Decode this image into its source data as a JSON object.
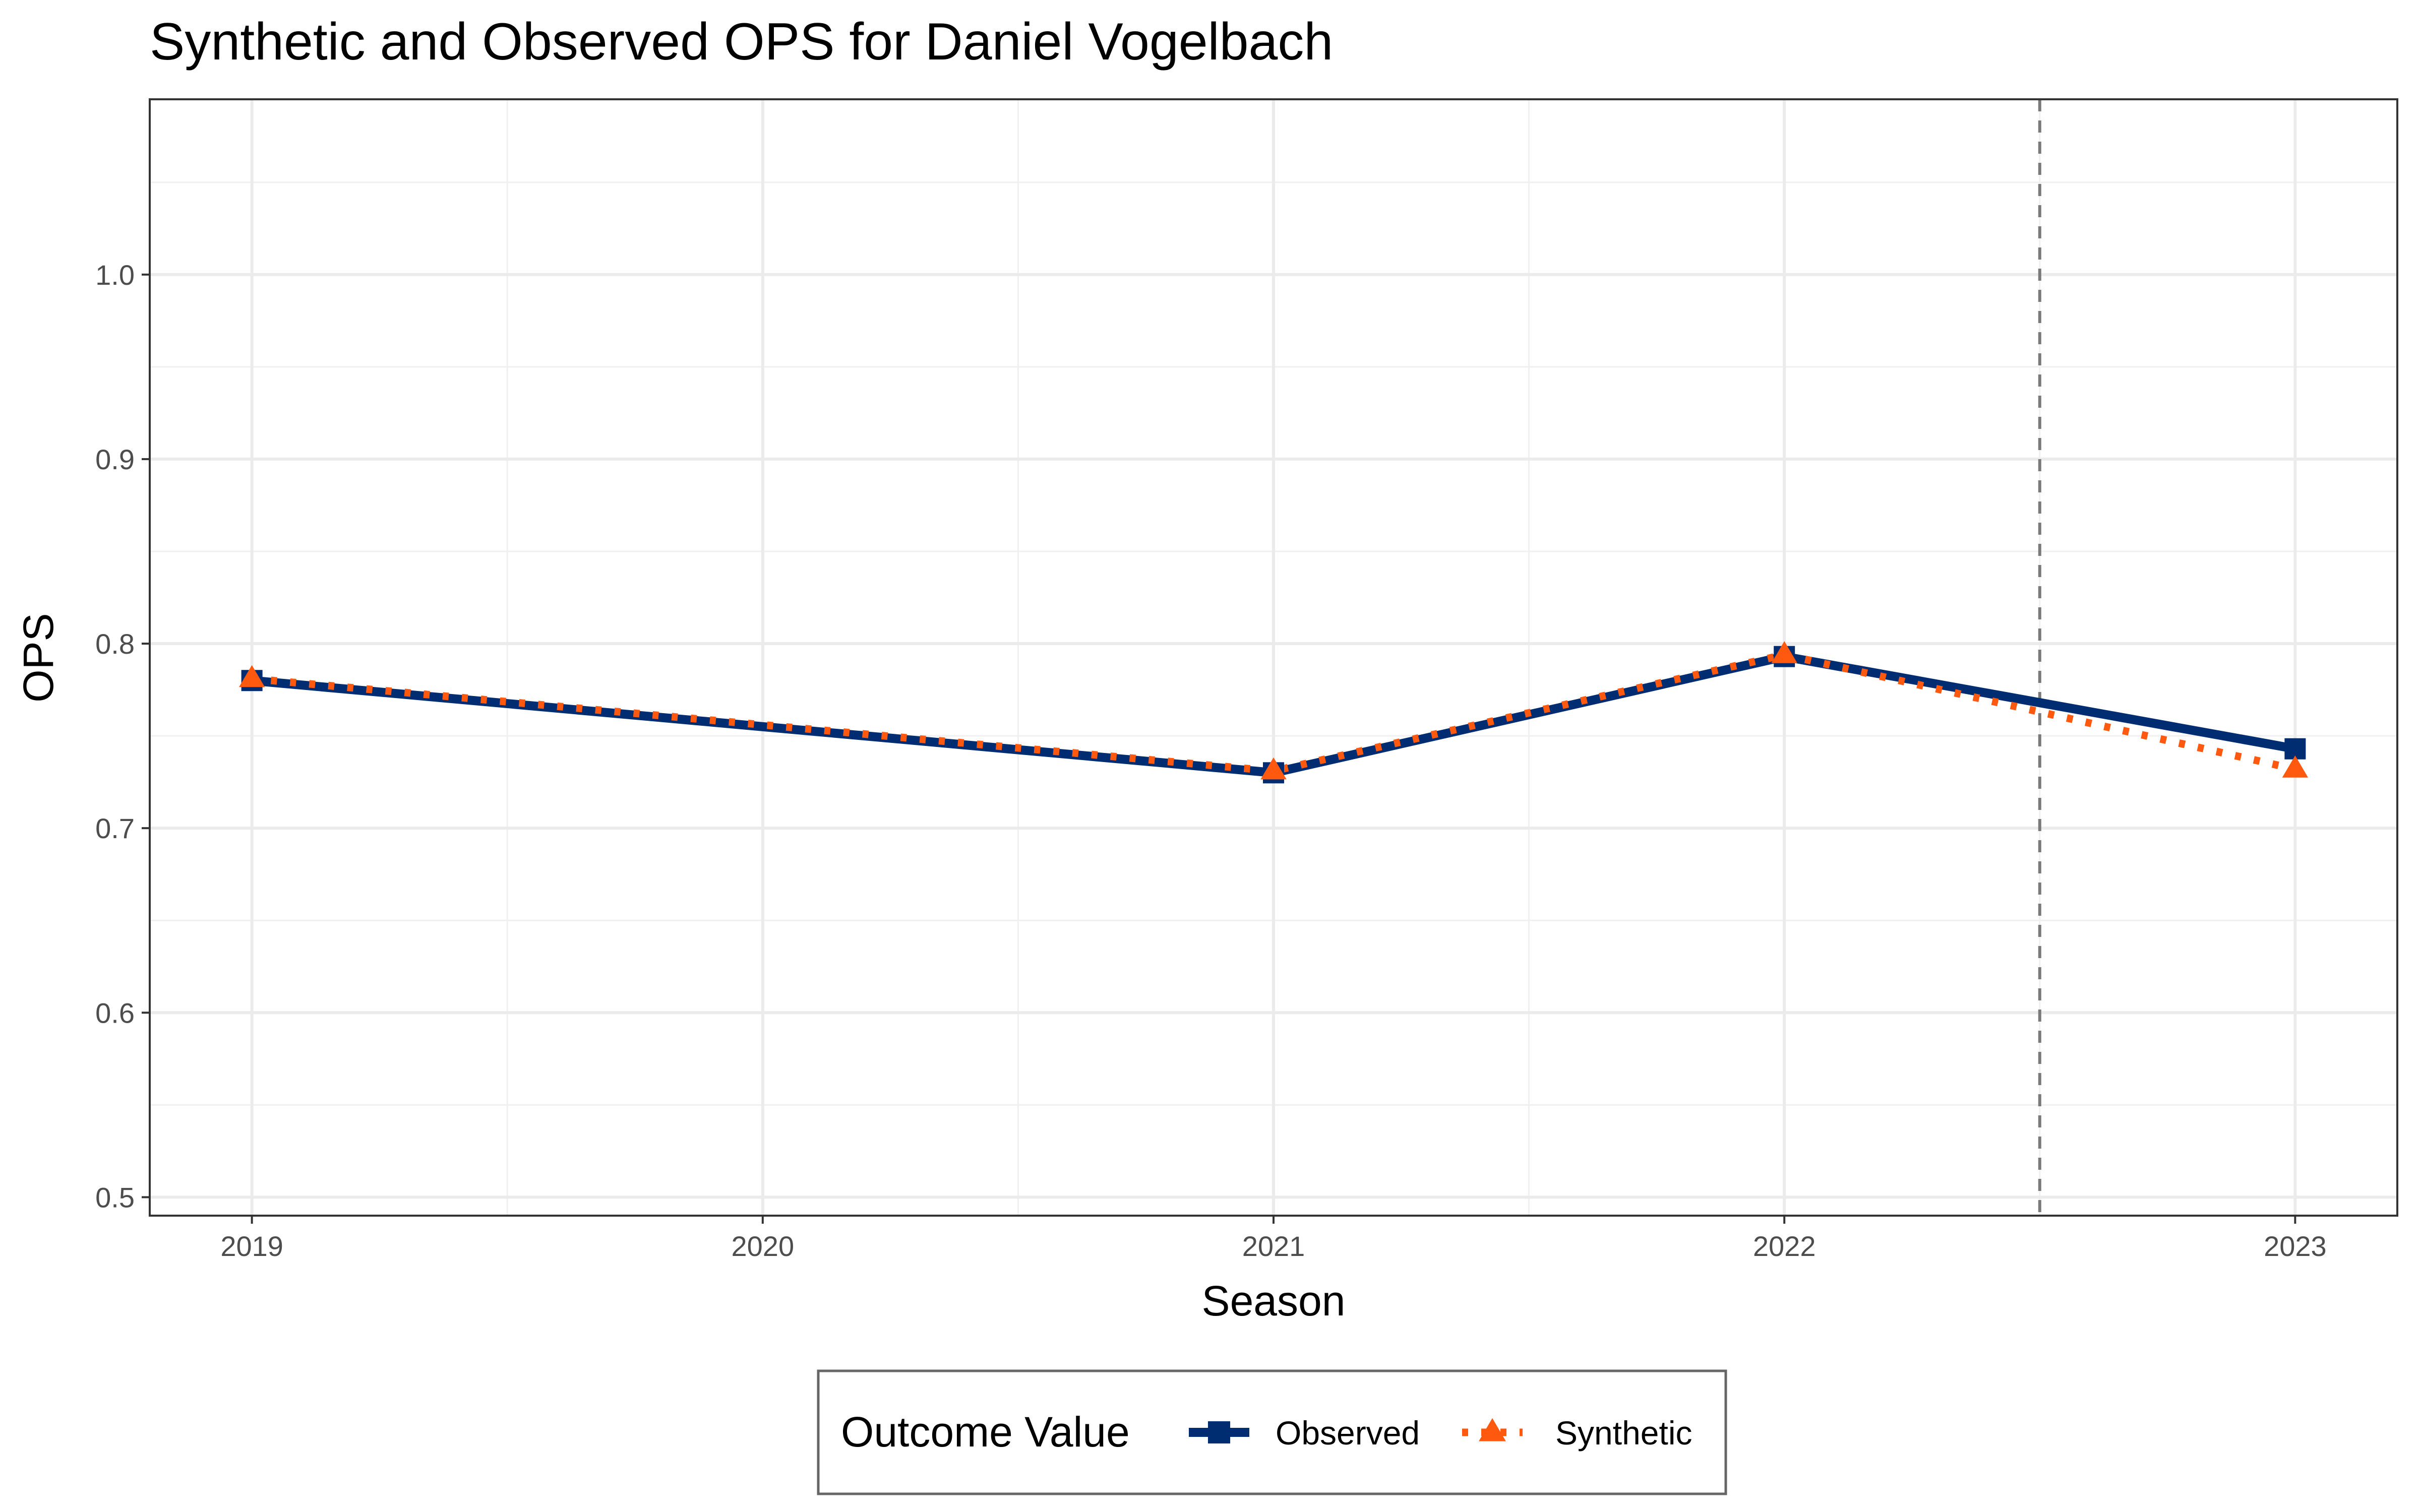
{
  "chart_data": {
    "type": "line",
    "title": "Synthetic and Observed OPS for Daniel Vogelbach",
    "xlabel": "Season",
    "ylabel": "OPS",
    "x": [
      2019,
      2020,
      2021,
      2022,
      2023
    ],
    "x_tick_labels": [
      "2019",
      "2020",
      "2021",
      "2022",
      "2023"
    ],
    "xlim": [
      2018.8,
      2023.2
    ],
    "y_ticks": [
      0.5,
      0.6,
      0.7,
      0.8,
      0.9,
      1.0
    ],
    "y_tick_labels": [
      "0.5",
      "0.6",
      "0.7",
      "0.8",
      "0.9",
      "1.0"
    ],
    "ylim": [
      0.49,
      1.095
    ],
    "grid": true,
    "treatment_line_x": 2022.5,
    "legend": {
      "title": "Outcome Value",
      "position": "bottom"
    },
    "series": [
      {
        "name": "Observed",
        "color": "#002D72",
        "marker": "square",
        "line_style": "solid",
        "points": [
          {
            "x": 2019,
            "y": 0.78
          },
          {
            "x": 2021,
            "y": 0.73
          },
          {
            "x": 2022,
            "y": 0.793
          },
          {
            "x": 2023,
            "y": 0.743
          }
        ]
      },
      {
        "name": "Synthetic",
        "color": "#FF5910",
        "marker": "triangle",
        "line_style": "dotted",
        "points": [
          {
            "x": 2019,
            "y": 0.781
          },
          {
            "x": 2021,
            "y": 0.731
          },
          {
            "x": 2022,
            "y": 0.794
          },
          {
            "x": 2023,
            "y": 0.732
          }
        ]
      }
    ]
  }
}
